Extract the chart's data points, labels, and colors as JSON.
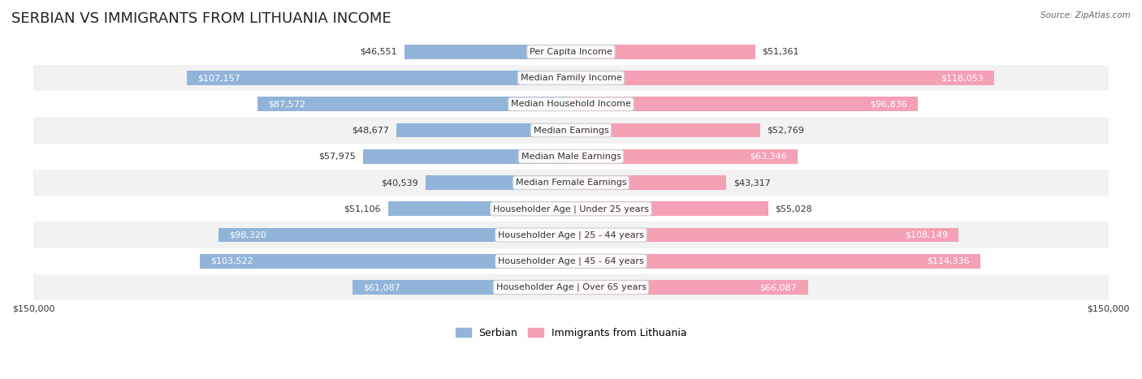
{
  "title": "SERBIAN VS IMMIGRANTS FROM LITHUANIA INCOME",
  "source": "Source: ZipAtlas.com",
  "categories": [
    "Per Capita Income",
    "Median Family Income",
    "Median Household Income",
    "Median Earnings",
    "Median Male Earnings",
    "Median Female Earnings",
    "Householder Age | Under 25 years",
    "Householder Age | 25 - 44 years",
    "Householder Age | 45 - 64 years",
    "Householder Age | Over 65 years"
  ],
  "serbian_values": [
    46551,
    107157,
    87572,
    48677,
    57975,
    40539,
    51106,
    98320,
    103522,
    61087
  ],
  "lithuania_values": [
    51361,
    118053,
    96836,
    52769,
    63346,
    43317,
    55028,
    108149,
    114336,
    66087
  ],
  "serbian_color": "#92b4d9",
  "lithuania_color": "#f4a0b5",
  "serbian_label": "Serbian",
  "lithuania_label": "Immigrants from Lithuania",
  "max_value": 150000,
  "bar_height": 0.55,
  "background_color": "#ffffff",
  "row_bg_color": "#f0f0f0",
  "row_bg_color2": "#ffffff",
  "title_fontsize": 13,
  "label_fontsize": 8,
  "value_fontsize": 8,
  "legend_fontsize": 9,
  "axis_label_fontsize": 8
}
